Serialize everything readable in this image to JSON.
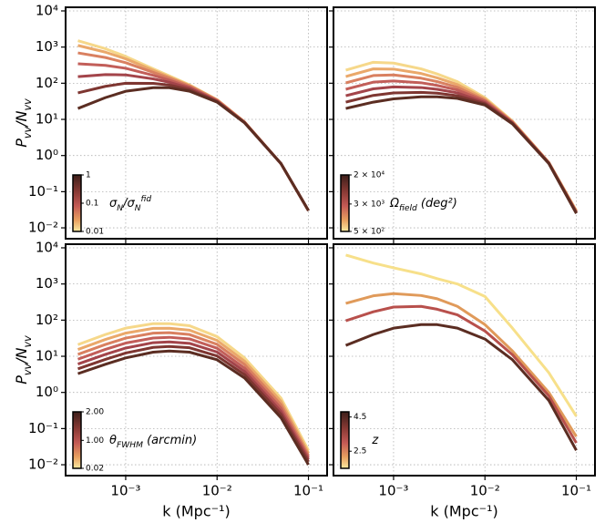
{
  "chart_data": [
    {
      "type": "line",
      "xlog": true,
      "ylog": true,
      "grid": true,
      "show_xtick_labels": false,
      "show_ytick_labels": true,
      "ylabel_parts": [
        {
          "text": "P"
        },
        {
          "text": "vv",
          "shift": "sub"
        },
        {
          "text": "/N"
        },
        {
          "text": "vv",
          "shift": "sub"
        }
      ],
      "xlim": [
        0.00022,
        0.16
      ],
      "ylim": [
        0.005,
        12600
      ],
      "xticks": [
        0.001,
        0.01,
        0.1
      ],
      "yticks": [
        {
          "value": 0.01,
          "label": "10⁻²"
        },
        {
          "value": 0.1,
          "label": "10⁻¹"
        },
        {
          "value": 1,
          "label": "10⁰"
        },
        {
          "value": 10,
          "label": "10¹"
        },
        {
          "value": 100,
          "label": "10²"
        },
        {
          "value": 1000,
          "label": "10³"
        },
        {
          "value": 10000,
          "label": "10⁴"
        }
      ],
      "x": [
        0.0003,
        0.0006,
        0.001,
        0.002,
        0.003,
        0.005,
        0.01,
        0.02,
        0.05,
        0.1
      ],
      "series": [
        {
          "color": "#5b2d22",
          "values": [
            20,
            40,
            60,
            75,
            75,
            60,
            30,
            8,
            0.6,
            0.03
          ]
        },
        {
          "color": "#7e3631",
          "values": [
            54,
            82,
            100,
            99,
            89,
            66,
            31,
            8.1,
            0.6,
            0.03
          ]
        },
        {
          "color": "#a3444a",
          "values": [
            152,
            173,
            170,
            132,
            106,
            73,
            32,
            8.2,
            0.6,
            0.03
          ]
        },
        {
          "color": "#c25e59",
          "values": [
            346,
            312,
            259,
            165,
            122,
            78,
            33,
            8.3,
            0.6,
            0.03
          ]
        },
        {
          "color": "#d98060",
          "values": [
            690,
            514,
            370,
            200,
            138,
            84,
            34,
            8.4,
            0.6,
            0.03
          ]
        },
        {
          "color": "#eaa86a",
          "values": [
            1109,
            723,
            473,
            228,
            149,
            87,
            35,
            8.5,
            0.6,
            0.03
          ]
        },
        {
          "color": "#f6d88a",
          "values": [
            1500,
            900,
            550,
            250,
            160,
            90,
            35,
            8.5,
            0.6,
            0.03
          ]
        }
      ],
      "colorbar": {
        "clim": [
          0.01,
          1
        ],
        "log": true,
        "ticks": [
          1,
          0.1,
          0.01
        ],
        "label_parts": [
          {
            "text": "σ"
          },
          {
            "text": "N",
            "shift": "sub"
          },
          {
            "text": "/σ"
          },
          {
            "text": "N",
            "shift": "sub"
          },
          {
            "text": "fid",
            "shift": "super"
          }
        ]
      }
    },
    {
      "type": "line",
      "xlog": true,
      "ylog": true,
      "grid": true,
      "show_xtick_labels": false,
      "show_ytick_labels": false,
      "xlim": [
        0.00022,
        0.16
      ],
      "ylim": [
        0.005,
        12600
      ],
      "xticks": [
        0.001,
        0.01,
        0.1
      ],
      "yticks": [
        0.01,
        0.1,
        1,
        10,
        100,
        1000,
        10000
      ],
      "x": [
        0.0003,
        0.0006,
        0.001,
        0.002,
        0.003,
        0.005,
        0.01,
        0.02,
        0.05,
        0.1
      ],
      "series": [
        {
          "color": "#5b2d22",
          "values": [
            20,
            30,
            37,
            42,
            42,
            38,
            25,
            7.5,
            0.6,
            0.025
          ]
        },
        {
          "color": "#7e3631",
          "values": [
            30,
            46,
            54,
            56,
            53,
            45,
            27,
            7.7,
            0.61,
            0.026
          ]
        },
        {
          "color": "#a3444a",
          "values": [
            45,
            70,
            79,
            76,
            68,
            54,
            29,
            8,
            0.62,
            0.027
          ]
        },
        {
          "color": "#c25e59",
          "values": [
            68,
            107,
            115,
            103,
            87,
            65,
            32,
            8.2,
            0.63,
            0.027
          ]
        },
        {
          "color": "#d98060",
          "values": [
            102,
            163,
            169,
            138,
            111,
            77,
            34,
            8.5,
            0.63,
            0.028
          ]
        },
        {
          "color": "#eaa86a",
          "values": [
            153,
            249,
            246,
            186,
            141,
            92,
            37,
            8.7,
            0.64,
            0.029
          ]
        },
        {
          "color": "#f6d88a",
          "values": [
            230,
            380,
            360,
            250,
            180,
            110,
            40,
            9,
            0.65,
            0.03
          ]
        }
      ],
      "colorbar": {
        "clim": [
          500,
          20000
        ],
        "log": true,
        "ticks": [
          {
            "value": 20000,
            "label": "2 × 10⁴"
          },
          {
            "value": 3000,
            "label": "3 × 10³"
          },
          {
            "value": 500,
            "label": "5 × 10²"
          }
        ],
        "label_parts": [
          {
            "text": "Ω"
          },
          {
            "text": "field",
            "shift": "sub"
          },
          {
            "text": " (deg²)"
          }
        ]
      }
    },
    {
      "type": "line",
      "xlog": true,
      "ylog": true,
      "grid": true,
      "show_xtick_labels": true,
      "show_ytick_labels": true,
      "xlabel": "k (Mpc⁻¹)",
      "ylabel_parts": [
        {
          "text": "P"
        },
        {
          "text": "vv",
          "shift": "sub"
        },
        {
          "text": "/N"
        },
        {
          "text": "vv",
          "shift": "sub"
        }
      ],
      "xlim": [
        0.00022,
        0.16
      ],
      "ylim": [
        0.005,
        12600
      ],
      "xticks": [
        {
          "value": 0.001,
          "label": "10⁻³"
        },
        {
          "value": 0.01,
          "label": "10⁻²"
        },
        {
          "value": 0.1,
          "label": "10⁻¹"
        }
      ],
      "yticks": [
        {
          "value": 0.01,
          "label": "10⁻²"
        },
        {
          "value": 0.1,
          "label": "10⁻¹"
        },
        {
          "value": 1,
          "label": "10⁰"
        },
        {
          "value": 10,
          "label": "10¹"
        },
        {
          "value": 100,
          "label": "10²"
        },
        {
          "value": 1000,
          "label": "10³"
        },
        {
          "value": 10000,
          "label": "10⁴"
        }
      ],
      "x": [
        0.0003,
        0.0006,
        0.001,
        0.002,
        0.003,
        0.005,
        0.01,
        0.02,
        0.05,
        0.1
      ],
      "series": [
        {
          "color": "#5b2d22",
          "values": [
            3.3,
            6,
            9,
            13,
            14,
            13,
            8,
            2.5,
            0.2,
            0.01
          ]
        },
        {
          "color": "#7e3631",
          "values": [
            4.5,
            8.2,
            12.3,
            17.6,
            18.7,
            17.2,
            10.2,
            3.1,
            0.25,
            0.012
          ]
        },
        {
          "color": "#a3444a",
          "values": [
            6.1,
            11.3,
            16.9,
            23.8,
            25,
            22.8,
            13.1,
            3.8,
            0.3,
            0.014
          ]
        },
        {
          "color": "#c25e59",
          "values": [
            8.3,
            15.5,
            23.2,
            32,
            33.5,
            30.2,
            16.7,
            4.7,
            0.37,
            0.016
          ]
        },
        {
          "color": "#d98060",
          "values": [
            11.3,
            21.2,
            31.8,
            43.6,
            44.8,
            39.9,
            21.4,
            5.9,
            0.46,
            0.018
          ]
        },
        {
          "color": "#eaa86a",
          "values": [
            15.4,
            29.2,
            43.7,
            59.2,
            59.8,
            52.8,
            27.4,
            7.3,
            0.57,
            0.021
          ]
        },
        {
          "color": "#f6d88a",
          "values": [
            21,
            40,
            60,
            80,
            80,
            70,
            35,
            9,
            0.7,
            0.025
          ]
        }
      ],
      "colorbar": {
        "clim": [
          0.02,
          2
        ],
        "log": false,
        "ticks": [
          {
            "value": 2,
            "label": "2.00"
          },
          {
            "value": 1,
            "label": "1.00"
          },
          0.02
        ],
        "label_parts": [
          {
            "text": "θ"
          },
          {
            "text": "FWHM",
            "shift": "sub"
          },
          {
            "text": " (arcmin)"
          }
        ]
      }
    },
    {
      "type": "line",
      "xlog": true,
      "ylog": true,
      "grid": true,
      "show_xtick_labels": true,
      "show_ytick_labels": false,
      "xlabel": "k (Mpc⁻¹)",
      "xlim": [
        0.00022,
        0.16
      ],
      "ylim": [
        0.005,
        12600
      ],
      "xticks": [
        {
          "value": 0.001,
          "label": "10⁻³"
        },
        {
          "value": 0.01,
          "label": "10⁻²"
        },
        {
          "value": 0.1,
          "label": "10⁻¹"
        }
      ],
      "yticks": [
        0.01,
        0.1,
        1,
        10,
        100,
        1000,
        10000
      ],
      "x": [
        0.0003,
        0.0006,
        0.001,
        0.002,
        0.003,
        0.005,
        0.01,
        0.02,
        0.05,
        0.1
      ],
      "series": [
        {
          "color": "#5b2d22",
          "values": [
            20,
            40,
            60,
            75,
            75,
            60,
            30,
            8,
            0.6,
            0.025
          ]
        },
        {
          "color": "#b8504c",
          "values": [
            96,
            170,
            230,
            240,
            200,
            140,
            50,
            11,
            0.8,
            0.04
          ]
        },
        {
          "color": "#e09a5a",
          "values": [
            290,
            470,
            540,
            480,
            390,
            240,
            75,
            14,
            1,
            0.06
          ]
        },
        {
          "color": "#f7e08a",
          "values": [
            6300,
            3800,
            2800,
            1900,
            1400,
            1000,
            450,
            60,
            3.5,
            0.22
          ]
        }
      ],
      "colorbar": {
        "clim": [
          1.5,
          4.8
        ],
        "log": false,
        "ticks": [
          4.5,
          2.5
        ],
        "label_parts": [
          {
            "text": "z"
          }
        ]
      }
    }
  ]
}
